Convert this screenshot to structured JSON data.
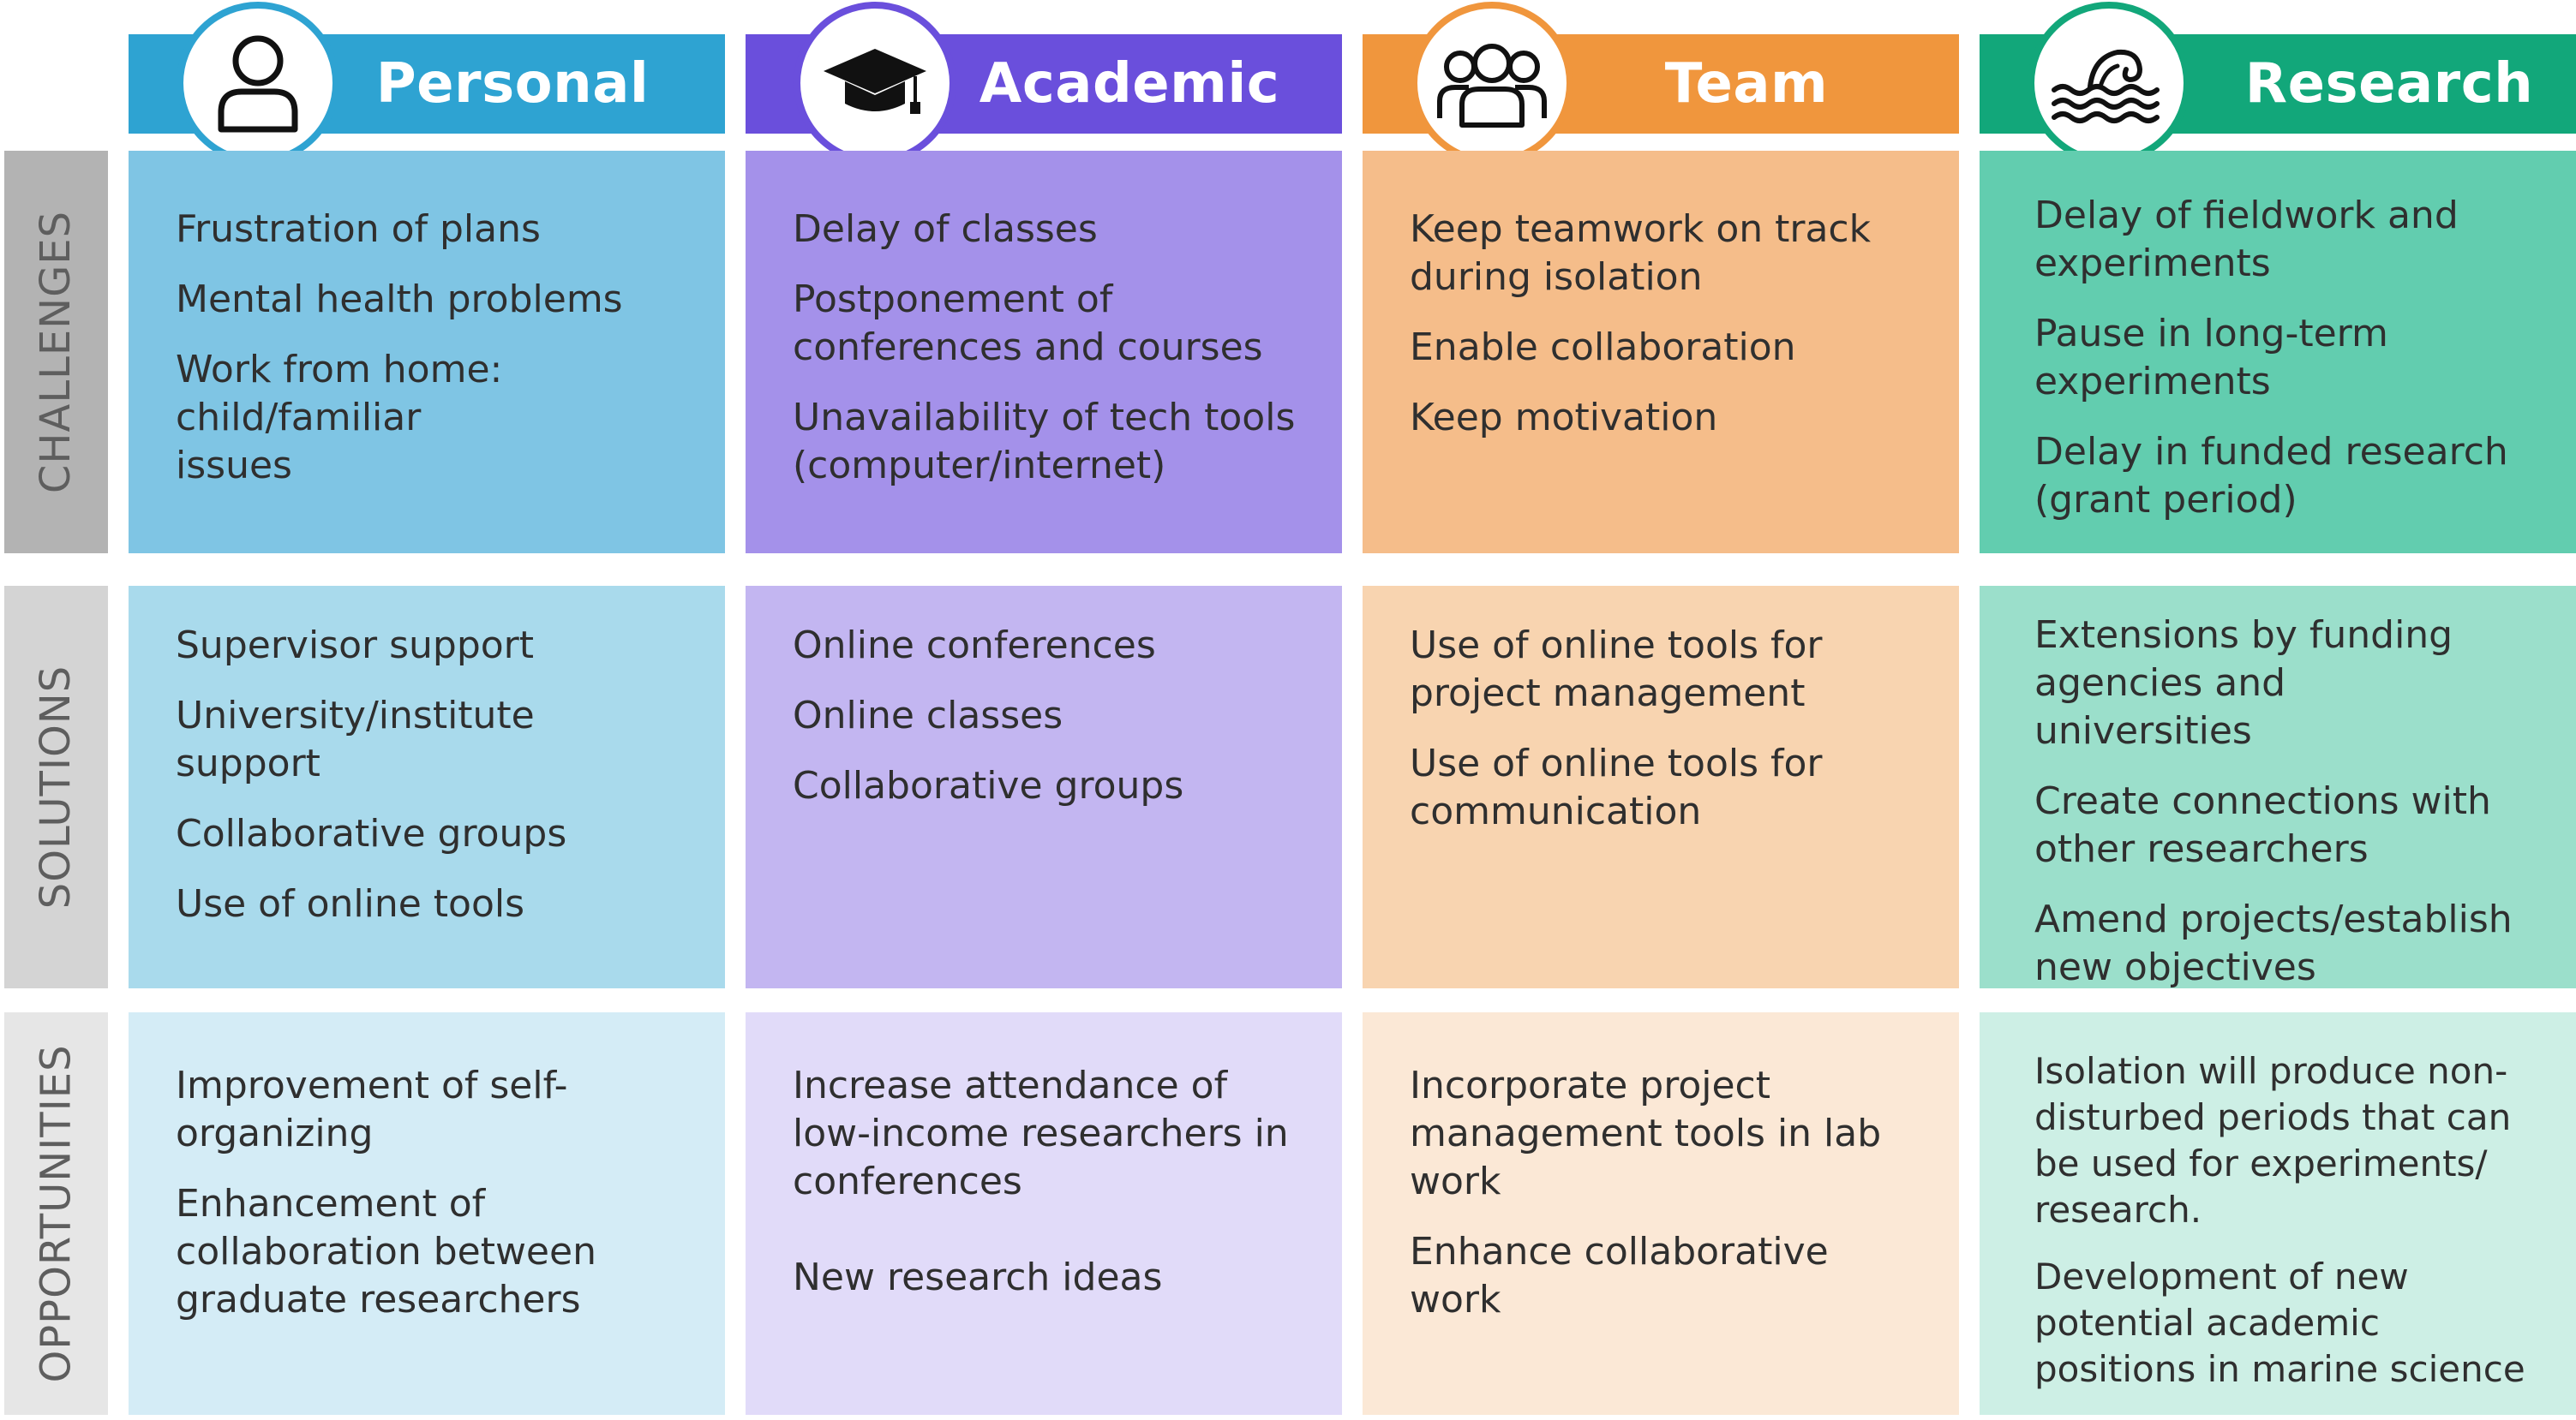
{
  "rows": [
    {
      "label": "CHALLENGES"
    },
    {
      "label": "SOLUTIONS"
    },
    {
      "label": "OPPORTUNITIES"
    }
  ],
  "columns": [
    {
      "title": "Personal",
      "icon": "person-icon",
      "color": "#2ea3d2"
    },
    {
      "title": "Academic",
      "icon": "graduation-cap-icon",
      "color": "#6a4fdc"
    },
    {
      "title": "Team",
      "icon": "team-icon",
      "color": "#f0963d"
    },
    {
      "title": "Research",
      "icon": "ocean-wave-icon",
      "color": "#12a77a"
    }
  ],
  "cells": {
    "personal": {
      "challenges": [
        "Frustration of plans",
        "Mental health problems",
        "Work from home: child/familiar issues"
      ],
      "solutions": [
        "Supervisor support",
        "University/institute support",
        "Collaborative groups",
        "Use of online tools"
      ],
      "opportunities": [
        "Improvement of self-organizing",
        "Enhancement of collaboration between graduate researchers"
      ]
    },
    "academic": {
      "challenges": [
        "Delay of classes",
        "Postponement of conferences and courses",
        "Unavailability of tech tools (computer/internet)"
      ],
      "solutions": [
        "Online conferences",
        "Online classes",
        "Collaborative groups"
      ],
      "opportunities": [
        "Increase attendance of low-income researchers in conferences",
        "New research ideas"
      ]
    },
    "team": {
      "challenges": [
        "Keep teamwork on track during isolation",
        "Enable collaboration",
        "Keep motivation"
      ],
      "solutions": [
        "Use of online tools for project management",
        "Use of online tools for communication"
      ],
      "opportunities": [
        "Incorporate project management tools in lab work",
        "Enhance collaborative work"
      ]
    },
    "research": {
      "challenges": [
        "Delay of fieldwork and experiments",
        "Pause in long-term experiments",
        "Delay in funded research (grant period)"
      ],
      "solutions": [
        "Extensions by funding agencies and universities",
        "Create connections with other researchers",
        "Amend projects/establish new objectives"
      ],
      "opportunities": [
        "Isolation will produce non-disturbed periods that can be used for experiments/ research.",
        "Development of new potential academic positions in marine science"
      ]
    }
  },
  "colors": {
    "row_label_bg": [
      "#b3b3b3",
      "#d4d4d4",
      "#e6e6e6"
    ],
    "personal": [
      "#7fc5e4",
      "#a9daec",
      "#d4ecf6"
    ],
    "academic": [
      "#a491ea",
      "#c3b6f1",
      "#e1dbf9"
    ],
    "team": [
      "#f5bd8a",
      "#f8d4b0",
      "#fbe8d6"
    ],
    "research": [
      "#62cdaf",
      "#9bdfcb",
      "#cdefe5"
    ]
  }
}
